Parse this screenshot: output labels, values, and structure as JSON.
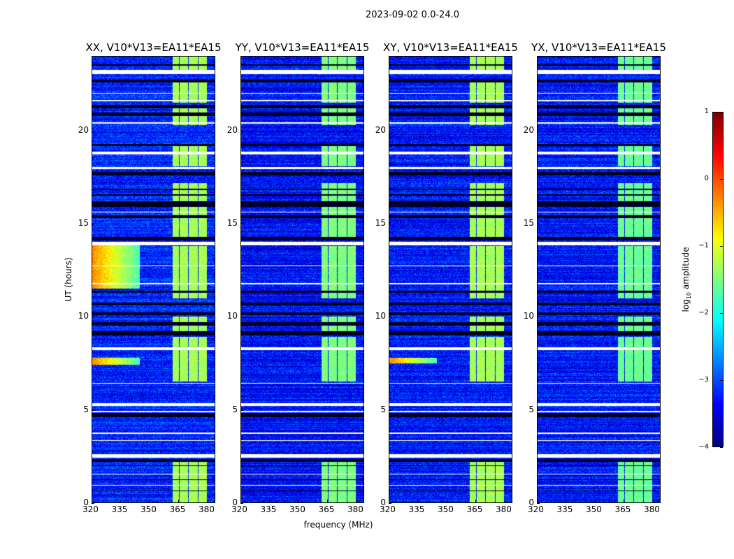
{
  "chart_data": {
    "type": "heatmap",
    "title": "2023-09-02 0.0-24.0",
    "xlabel": "frequency (MHz)",
    "ylabel": "UT (hours)",
    "xlim": [
      320,
      384
    ],
    "ylim": [
      0,
      24
    ],
    "xticks": [
      "320",
      "335",
      "350",
      "365",
      "380"
    ],
    "xtick_values": [
      320,
      335,
      350,
      365,
      380
    ],
    "yticks": [
      "0",
      "5",
      "10",
      "15",
      "20"
    ],
    "ytick_values": [
      0,
      5,
      10,
      15,
      20
    ],
    "colormap": "jet",
    "colorbar": {
      "label_main": "log",
      "label_sub": "10",
      "label_rest": " amplitude",
      "range": [
        -4,
        1
      ],
      "ticks": [
        "−4",
        "−3",
        "−2",
        "−1",
        "0",
        "1"
      ],
      "tick_values": [
        -4,
        -3,
        -2,
        -1,
        0,
        1
      ]
    },
    "panels": [
      {
        "title": "XX, V10*V13=EA11*EA15",
        "base_level": -3.2,
        "rfi_level": -1.3,
        "strong_low_freq_hours": [
          [
            11.5,
            13.9
          ],
          [
            7.4,
            7.8
          ]
        ]
      },
      {
        "title": "YY, V10*V13=EA11*EA15",
        "base_level": -3.35,
        "rfi_level": -1.5,
        "strong_low_freq_hours": []
      },
      {
        "title": "XY, V10*V13=EA11*EA15",
        "base_level": -3.3,
        "rfi_level": -1.3,
        "strong_low_freq_hours": [
          [
            7.5,
            7.8
          ]
        ]
      },
      {
        "title": "YX, V10*V13=EA11*EA15",
        "base_level": -3.3,
        "rfi_level": -1.6,
        "strong_low_freq_hours": []
      }
    ],
    "flagged_white_hours": [
      [
        23.05,
        23.3
      ],
      [
        18.75,
        18.9
      ],
      [
        17.95,
        18.05
      ],
      [
        13.85,
        14.05
      ],
      [
        8.2,
        8.35
      ],
      [
        5.2,
        5.35
      ],
      [
        4.85,
        4.92
      ],
      [
        2.4,
        2.58
      ],
      [
        22.0,
        22.05
      ],
      [
        21.6,
        21.65
      ],
      [
        20.4,
        20.45
      ],
      [
        15.6,
        15.65
      ],
      [
        12.7,
        12.75
      ],
      [
        11.75,
        11.8
      ],
      [
        6.4,
        6.45
      ],
      [
        3.3,
        3.35
      ],
      [
        3.7,
        3.75
      ],
      [
        1.5,
        1.55
      ],
      [
        0.9,
        0.95
      ]
    ],
    "dropout_black_hours": [
      [
        23.5,
        23.6
      ],
      [
        22.6,
        22.75
      ],
      [
        21.2,
        21.4
      ],
      [
        20.8,
        21.0
      ],
      [
        19.2,
        19.3
      ],
      [
        17.6,
        17.8
      ],
      [
        15.9,
        16.2
      ],
      [
        15.3,
        15.45
      ],
      [
        14.1,
        14.3
      ],
      [
        10.6,
        10.75
      ],
      [
        10.1,
        10.25
      ],
      [
        9.5,
        9.7
      ],
      [
        9.0,
        9.2
      ],
      [
        4.6,
        4.8
      ],
      [
        2.2,
        2.35
      ],
      [
        1.95,
        2.0
      ],
      [
        1.2,
        1.25
      ],
      [
        0.6,
        0.65
      ],
      [
        16.5,
        16.6
      ],
      [
        16.8,
        16.9
      ],
      [
        11.3,
        11.4
      ]
    ],
    "rfi_bands_mhz": [
      [
        362,
        365.4
      ],
      [
        365.8,
        370.1
      ],
      [
        370.6,
        375.1
      ],
      [
        375.6,
        380
      ]
    ],
    "rfi_active_hours": [
      [
        0,
        2.2
      ],
      [
        6.5,
        8.9
      ],
      [
        9.2,
        10.0
      ],
      [
        11.0,
        13.8
      ],
      [
        14.3,
        17.2
      ],
      [
        18.1,
        19.2
      ],
      [
        20.3,
        21.3
      ],
      [
        21.5,
        22.6
      ],
      [
        23.3,
        24
      ]
    ]
  }
}
